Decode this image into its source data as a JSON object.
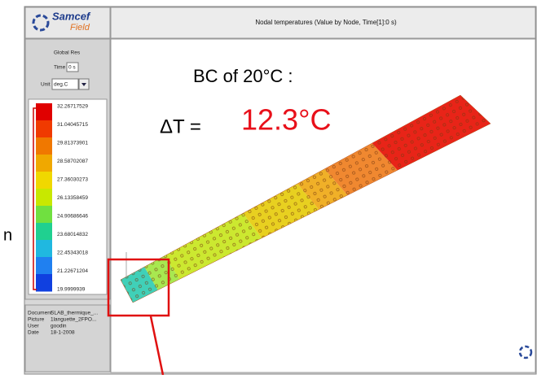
{
  "edge_text": "n",
  "logo": {
    "name": "Samcef",
    "sub": "Field"
  },
  "header": {
    "title": "Nodal temperatures (Value by Node, Time[1]:0 s)"
  },
  "panel": {
    "title": "Global Res",
    "time_label": "Time",
    "time_value": "0 s",
    "unit_label": "Unit",
    "unit_value": "deg.C",
    "legend": [
      "32.26717529",
      "31.04045715",
      "29.81373901",
      "28.58702087",
      "27.36030273",
      "26.13358459",
      "24.90686646",
      "23.68014832",
      "22.45343018",
      "21.22671204",
      "19.9999939"
    ]
  },
  "info": {
    "rows": [
      [
        "Document",
        "SLAB_thermique_..."
      ],
      [
        "Picture",
        "1languette_2FPO..."
      ],
      [
        "User",
        "goodin"
      ],
      [
        "Date",
        "18-1-2008"
      ]
    ]
  },
  "annotation": {
    "line1": "BC of 20°C :",
    "delta_label": "ΔT = ",
    "delta_value": "12.3°C"
  }
}
